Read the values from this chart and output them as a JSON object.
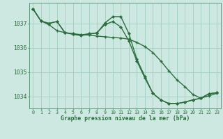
{
  "title": "Graphe pression niveau de la mer (hPa)",
  "background_color": "#cce8e0",
  "grid_color": "#9ecfc4",
  "line_color": "#2d6e3e",
  "xlim": [
    -0.5,
    23.5
  ],
  "ylim": [
    1033.5,
    1037.85
  ],
  "yticks": [
    1034,
    1035,
    1036,
    1037
  ],
  "xticks": [
    0,
    1,
    2,
    3,
    4,
    5,
    6,
    7,
    8,
    9,
    10,
    11,
    12,
    13,
    14,
    15,
    16,
    17,
    18,
    19,
    20,
    21,
    22,
    23
  ],
  "series_a_x": [
    0,
    1,
    2,
    3,
    4,
    5,
    6,
    7,
    8,
    9,
    10,
    11,
    12,
    13,
    14,
    15,
    16,
    17,
    18,
    19,
    20,
    21,
    22,
    23
  ],
  "series_a_y": [
    1037.6,
    1037.1,
    1036.95,
    1036.7,
    1036.62,
    1036.57,
    1036.54,
    1036.52,
    1036.48,
    1036.45,
    1036.42,
    1036.4,
    1036.35,
    1036.22,
    1036.05,
    1035.8,
    1035.45,
    1035.05,
    1034.68,
    1034.4,
    1034.08,
    1033.92,
    1034.02,
    1034.12
  ],
  "series_b_x": [
    0,
    1,
    2,
    3,
    4,
    5,
    6,
    7,
    8,
    9,
    10,
    11,
    12,
    13,
    14,
    15,
    16,
    17,
    18,
    19,
    20,
    21,
    22,
    23
  ],
  "series_b_y": [
    1037.6,
    1037.1,
    1037.0,
    1037.08,
    1036.62,
    1036.58,
    1036.52,
    1036.58,
    1036.6,
    1037.02,
    1037.28,
    1037.28,
    1036.58,
    1035.52,
    1034.82,
    1034.12,
    1033.85,
    1033.7,
    1033.7,
    1033.76,
    1033.85,
    1033.92,
    1034.1,
    1034.15
  ],
  "series_c_x": [
    0,
    1,
    2,
    3,
    4,
    5,
    6,
    7,
    8,
    9,
    10,
    11,
    12,
    13,
    14,
    15,
    16,
    17,
    18,
    19,
    20,
    21,
    22,
    23
  ],
  "series_c_y": [
    1037.6,
    1037.1,
    1037.0,
    1037.08,
    1036.62,
    1036.55,
    1036.5,
    1036.55,
    1036.62,
    1036.95,
    1037.08,
    1036.85,
    1036.28,
    1035.45,
    1034.75,
    1034.12,
    1033.85,
    1033.7,
    1033.7,
    1033.76,
    1033.85,
    1033.92,
    1034.1,
    1034.15
  ]
}
